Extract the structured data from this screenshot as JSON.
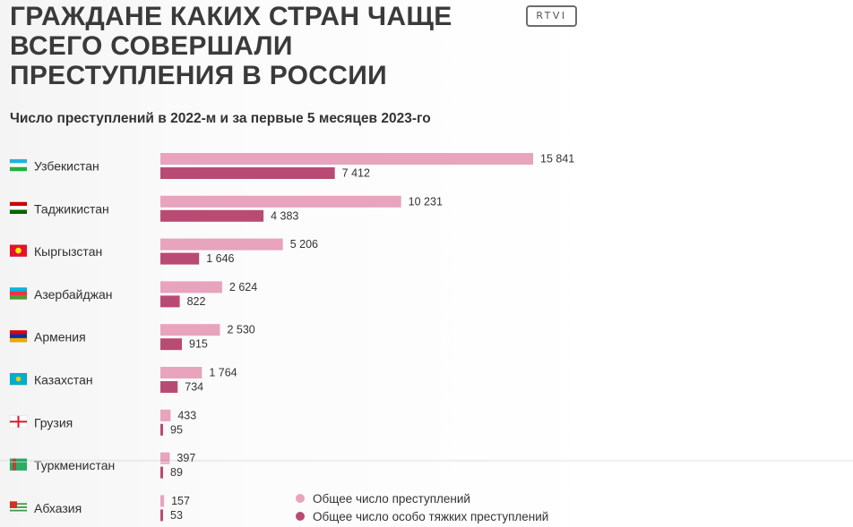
{
  "header": {
    "title": "ГРАЖДАНЕ КАКИХ СТРАН ЧАЩЕ ВСЕГО СОВЕРШАЛИ ПРЕСТУПЛЕНИЯ В РОССИИ",
    "subtitle": "Число преступлений в 2022-м и за первые 5 месяцев 2023-го",
    "logo": "RTVI"
  },
  "colors": {
    "total": "#e8a3bd",
    "grave": "#b94a73"
  },
  "chart_data": {
    "type": "bar",
    "orientation": "horizontal",
    "title": "ГРАЖДАНЕ КАКИХ СТРАН ЧАЩЕ ВСЕГО СОВЕРШАЛИ ПРЕСТУПЛЕНИЯ В РОССИИ",
    "subtitle": "Число преступлений в 2022-м и за первые 5 месяцев 2023-го",
    "categories": [
      "Узбекистан",
      "Таджикистан",
      "Кыргызстан",
      "Азербайджан",
      "Армения",
      "Казахстан",
      "Грузия",
      "Туркменистан",
      "Абхазия"
    ],
    "series": [
      {
        "name": "Общее число преступлений",
        "values": [
          15841,
          10231,
          5206,
          2624,
          2530,
          1764,
          433,
          397,
          157
        ],
        "labels": [
          "15 841",
          "10 231",
          "5 206",
          "2 624",
          "2 530",
          "1 764",
          "433",
          "397",
          "157"
        ]
      },
      {
        "name": "Общее число особо тяжких преступлений",
        "values": [
          7412,
          4383,
          1646,
          822,
          915,
          734,
          95,
          89,
          53
        ],
        "labels": [
          "7 412",
          "4 383",
          "1 646",
          "822",
          "915",
          "734",
          "95",
          "89",
          "53"
        ]
      }
    ],
    "flags": [
      "uzbekistan-flag-icon",
      "tajikistan-flag-icon",
      "kyrgyzstan-flag-icon",
      "azerbaijan-flag-icon",
      "armenia-flag-icon",
      "kazakhstan-flag-icon",
      "georgia-flag-icon",
      "turkmenistan-flag-icon",
      "abkhazia-flag-icon"
    ],
    "xlim": [
      0,
      15841
    ],
    "grid": false,
    "legend": "bottom-right"
  },
  "legend": {
    "items": [
      {
        "label": "Общее число преступлений"
      },
      {
        "label": "Общее число особо тяжких преступлений"
      }
    ]
  }
}
